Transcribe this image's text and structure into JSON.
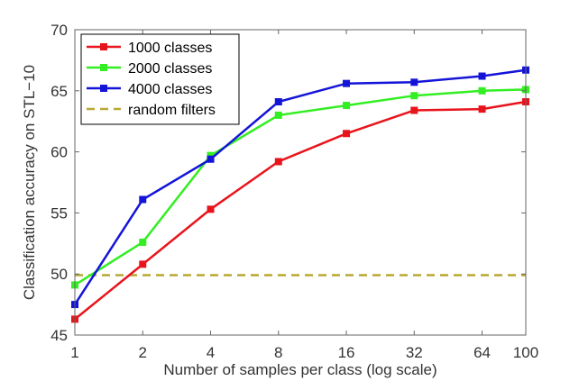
{
  "chart_data": {
    "type": "line",
    "title": "",
    "xlabel": "Number of samples per class (log scale)",
    "ylabel": "Classification accuracy on STL−10",
    "x_scale": "log",
    "x": [
      1,
      2,
      4,
      8,
      16,
      32,
      64,
      100
    ],
    "x_tick_labels": [
      "1",
      "2",
      "4",
      "8",
      "16",
      "32",
      "64",
      "100"
    ],
    "ylim": [
      45,
      70
    ],
    "y_ticks": [
      45,
      50,
      55,
      60,
      65,
      70
    ],
    "grid": false,
    "legend_position": "top-left",
    "series": [
      {
        "name": "1000 classes",
        "color": "#e8141c",
        "marker": "square",
        "values": [
          46.3,
          50.8,
          55.3,
          59.2,
          61.5,
          63.4,
          63.5,
          64.1
        ]
      },
      {
        "name": "2000 classes",
        "color": "#33ee22",
        "marker": "square",
        "values": [
          49.1,
          52.6,
          59.7,
          63.0,
          63.8,
          64.6,
          65.0,
          65.1
        ]
      },
      {
        "name": "4000 classes",
        "color": "#1414d8",
        "marker": "square",
        "values": [
          47.5,
          56.1,
          59.4,
          64.1,
          65.6,
          65.7,
          66.2,
          66.7
        ]
      }
    ],
    "reference_lines": [
      {
        "name": "random filters",
        "color": "#b8a832",
        "style": "dashed",
        "y": 49.9
      }
    ]
  }
}
